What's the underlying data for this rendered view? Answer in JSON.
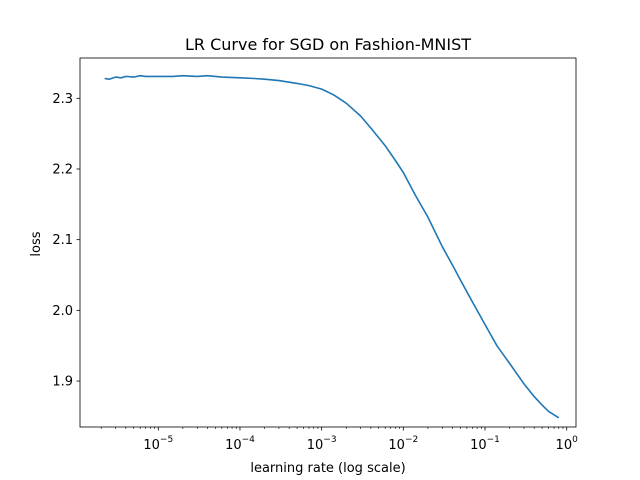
{
  "chart_data": {
    "type": "line",
    "title": "LR Curve for SGD on Fashion-MNIST",
    "xlabel": "learning rate (log scale)",
    "ylabel": "loss",
    "x_scale": "log",
    "xlim": [
      1.1e-06,
      1.3
    ],
    "ylim": [
      1.835,
      2.357
    ],
    "grid": false,
    "legend": "none",
    "line_color": "#1f77b4",
    "x_ticks": [
      {
        "value": 1e-05,
        "base": "10",
        "exp": "−5"
      },
      {
        "value": 0.0001,
        "base": "10",
        "exp": "−4"
      },
      {
        "value": 0.001,
        "base": "10",
        "exp": "−3"
      },
      {
        "value": 0.01,
        "base": "10",
        "exp": "−2"
      },
      {
        "value": 0.1,
        "base": "10",
        "exp": "−1"
      },
      {
        "value": 1,
        "base": "10",
        "exp": "0"
      }
    ],
    "y_ticks": [
      {
        "value": 1.9,
        "label": "1.9"
      },
      {
        "value": 2.0,
        "label": "2.0"
      },
      {
        "value": 2.1,
        "label": "2.1"
      },
      {
        "value": 2.2,
        "label": "2.2"
      },
      {
        "value": 2.3,
        "label": "2.3"
      }
    ],
    "series": [
      {
        "x": [
          2.2e-06,
          2.5e-06,
          3e-06,
          3.5e-06,
          4e-06,
          5e-06,
          6e-06,
          7e-06,
          1e-05,
          1.5e-05,
          2e-05,
          3e-05,
          4e-05,
          6e-05,
          0.0001,
          0.00015,
          0.0002,
          0.0003,
          0.0005,
          0.0007,
          0.001,
          0.0014,
          0.002,
          0.003,
          0.004,
          0.006,
          0.008,
          0.01,
          0.014,
          0.02,
          0.03,
          0.04,
          0.05,
          0.07,
          0.1,
          0.14,
          0.2,
          0.3,
          0.4,
          0.5,
          0.6,
          0.8
        ],
        "y": [
          2.328,
          2.327,
          2.33,
          2.329,
          2.331,
          2.33,
          2.332,
          2.331,
          2.331,
          2.331,
          2.332,
          2.331,
          2.332,
          2.33,
          2.329,
          2.328,
          2.327,
          2.325,
          2.321,
          2.318,
          2.313,
          2.305,
          2.293,
          2.275,
          2.258,
          2.233,
          2.212,
          2.195,
          2.163,
          2.132,
          2.09,
          2.064,
          2.043,
          2.012,
          1.98,
          1.95,
          1.925,
          1.896,
          1.878,
          1.866,
          1.857,
          1.848
        ]
      }
    ]
  }
}
